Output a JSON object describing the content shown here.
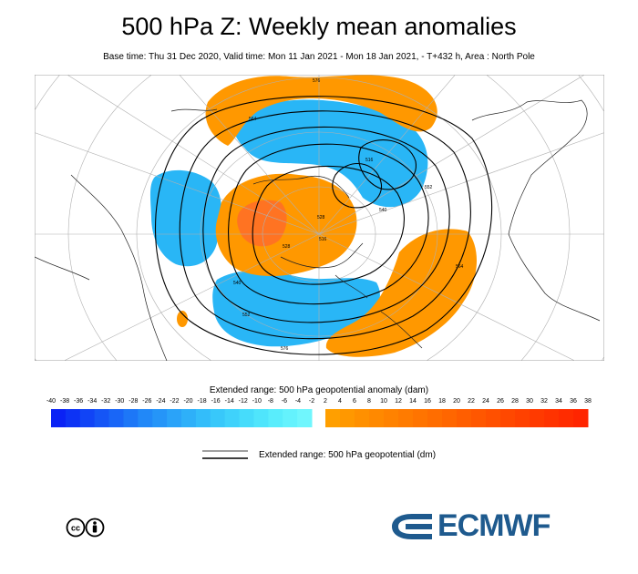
{
  "header": {
    "title": "500 hPa Z: Weekly mean anomalies",
    "subtitle": "Base time: Thu 31 Dec 2020, Valid time: Mon 11 Jan 2021 - Mon 18 Jan 2021, - T+432 h, Area : North Pole"
  },
  "map": {
    "contour_labels": [
      "576",
      "564",
      "552",
      "540",
      "528",
      "516",
      "516",
      "528",
      "540",
      "552",
      "564",
      "576"
    ]
  },
  "colorbar": {
    "label": "Extended range: 500 hPa geopotential anomaly (dam)",
    "ticks": [
      "-40",
      "-38",
      "-36",
      "-34",
      "-32",
      "-30",
      "-28",
      "-26",
      "-24",
      "-22",
      "-20",
      "-18",
      "-16",
      "-14",
      "-12",
      "-10",
      "-8",
      "-6",
      "-4",
      "-2",
      "2",
      "4",
      "6",
      "8",
      "10",
      "12",
      "14",
      "16",
      "18",
      "20",
      "22",
      "24",
      "26",
      "28",
      "30",
      "32",
      "34",
      "36",
      "38"
    ],
    "negative_colors": [
      "#0a22f5",
      "#0d33f5",
      "#1144f6",
      "#1555f6",
      "#1966f7",
      "#1d77f7",
      "#2188f8",
      "#2595f8",
      "#2aa3f9",
      "#2eb0f9",
      "#33bdfa",
      "#38c8fa",
      "#3fd2fb",
      "#46dcfb",
      "#4fe5fc",
      "#59edfc",
      "#64f2fd",
      "#70f6fd"
    ],
    "positive_colors": [
      "#ff9f00",
      "#ff9800",
      "#ff9000",
      "#ff8900",
      "#ff8200",
      "#ff7b00",
      "#ff7400",
      "#ff6d00",
      "#ff6600",
      "#ff5e00",
      "#ff5700",
      "#ff5000",
      "#ff4800",
      "#ff4100",
      "#ff3a00",
      "#ff3300",
      "#ff2c00",
      "#ff2500"
    ]
  },
  "legend": {
    "contour_label": "Extended range: 500 hPa geopotential (dm)"
  },
  "branding": {
    "logo_text": "ECMWF",
    "logo_color": "#1e5a8e",
    "license_icon": "cc-by-icon"
  }
}
